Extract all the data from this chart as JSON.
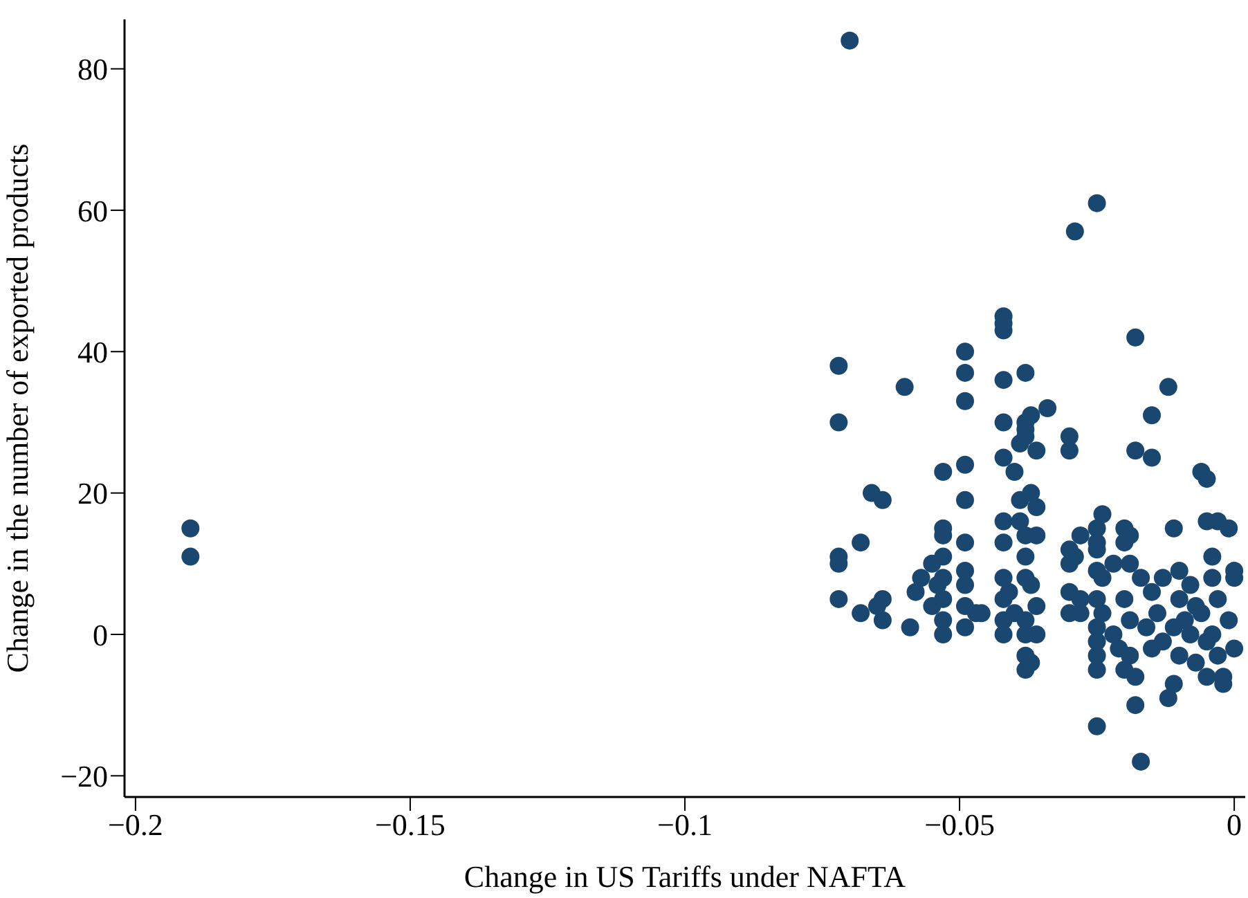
{
  "chart_data": {
    "type": "scatter",
    "xlabel": "Change in US Tariffs under NAFTA",
    "ylabel": "Change in the number of exported products",
    "xlim": [
      -0.202,
      0.002
    ],
    "ylim": [
      -23,
      87
    ],
    "xticks": [
      -0.2,
      -0.15,
      -0.1,
      -0.05,
      0
    ],
    "yticks": [
      -20,
      0,
      20,
      40,
      60,
      80
    ],
    "grid": false,
    "marker": "circle",
    "series": [
      {
        "color": "#1a476f",
        "x": [
          -0.19,
          -0.19,
          -0.07,
          -0.029,
          -0.025,
          -0.072,
          -0.072,
          -0.072,
          -0.072,
          -0.072,
          -0.068,
          -0.068,
          -0.066,
          -0.064,
          -0.065,
          -0.064,
          -0.064,
          -0.06,
          -0.059,
          -0.058,
          -0.057,
          -0.055,
          -0.055,
          -0.054,
          -0.053,
          -0.053,
          -0.053,
          -0.053,
          -0.053,
          -0.053,
          -0.053,
          -0.053,
          -0.049,
          -0.049,
          -0.049,
          -0.049,
          -0.049,
          -0.049,
          -0.049,
          -0.049,
          -0.049,
          -0.049,
          -0.047,
          -0.046,
          -0.042,
          -0.042,
          -0.042,
          -0.042,
          -0.042,
          -0.042,
          -0.042,
          -0.042,
          -0.042,
          -0.042,
          -0.042,
          -0.042,
          -0.041,
          -0.04,
          -0.04,
          -0.039,
          -0.039,
          -0.039,
          -0.038,
          -0.038,
          -0.038,
          -0.038,
          -0.038,
          -0.038,
          -0.038,
          -0.038,
          -0.038,
          -0.038,
          -0.038,
          -0.037,
          -0.037,
          -0.037,
          -0.037,
          -0.036,
          -0.036,
          -0.036,
          -0.036,
          -0.036,
          -0.034,
          -0.03,
          -0.03,
          -0.03,
          -0.03,
          -0.03,
          -0.03,
          -0.029,
          -0.028,
          -0.028,
          -0.028,
          -0.025,
          -0.025,
          -0.025,
          -0.025,
          -0.025,
          -0.025,
          -0.025,
          -0.025,
          -0.025,
          -0.025,
          -0.024,
          -0.024,
          -0.024,
          -0.022,
          -0.022,
          -0.021,
          -0.02,
          -0.02,
          -0.02,
          -0.02,
          -0.019,
          -0.019,
          -0.019,
          -0.019,
          -0.018,
          -0.018,
          -0.018,
          -0.018,
          -0.017,
          -0.017,
          -0.016,
          -0.015,
          -0.015,
          -0.015,
          -0.015,
          -0.014,
          -0.013,
          -0.013,
          -0.012,
          -0.012,
          -0.011,
          -0.011,
          -0.011,
          -0.01,
          -0.01,
          -0.01,
          -0.009,
          -0.008,
          -0.008,
          -0.007,
          -0.007,
          -0.006,
          -0.006,
          -0.005,
          -0.005,
          -0.005,
          -0.005,
          -0.004,
          -0.004,
          -0.004,
          -0.003,
          -0.003,
          -0.002,
          -0.002,
          -0.001,
          -0.001,
          0,
          0,
          0,
          -0.003
        ],
        "values": [
          15,
          11,
          84,
          57,
          61,
          38,
          30,
          11,
          10,
          5,
          13,
          3,
          20,
          19,
          4,
          5,
          2,
          35,
          1,
          6,
          8,
          10,
          4,
          7,
          15,
          14,
          11,
          8,
          5,
          2,
          0,
          23,
          40,
          37,
          33,
          24,
          19,
          13,
          9,
          7,
          4,
          1,
          3,
          3,
          45,
          44,
          43,
          36,
          30,
          25,
          16,
          13,
          8,
          5,
          2,
          0,
          6,
          23,
          3,
          27,
          16,
          19,
          37,
          30,
          29,
          28,
          14,
          11,
          8,
          2,
          0,
          -3,
          -5,
          31,
          20,
          7,
          -4,
          26,
          18,
          14,
          4,
          0,
          32,
          28,
          26,
          12,
          10,
          6,
          3,
          11,
          14,
          5,
          3,
          15,
          13,
          12,
          9,
          5,
          1,
          -1,
          -3,
          -5,
          -13,
          17,
          8,
          3,
          10,
          0,
          -2,
          15,
          13,
          5,
          -5,
          14,
          10,
          2,
          -3,
          42,
          26,
          -6,
          -10,
          8,
          -18,
          1,
          31,
          25,
          6,
          -2,
          3,
          8,
          -1,
          35,
          -9,
          15,
          1,
          -7,
          9,
          5,
          -3,
          2,
          7,
          0,
          -4,
          4,
          23,
          3,
          22,
          16,
          -1,
          -6,
          8,
          0,
          11,
          16,
          5,
          -6,
          -7,
          15,
          2,
          9,
          8,
          -2,
          -3
        ]
      }
    ]
  }
}
